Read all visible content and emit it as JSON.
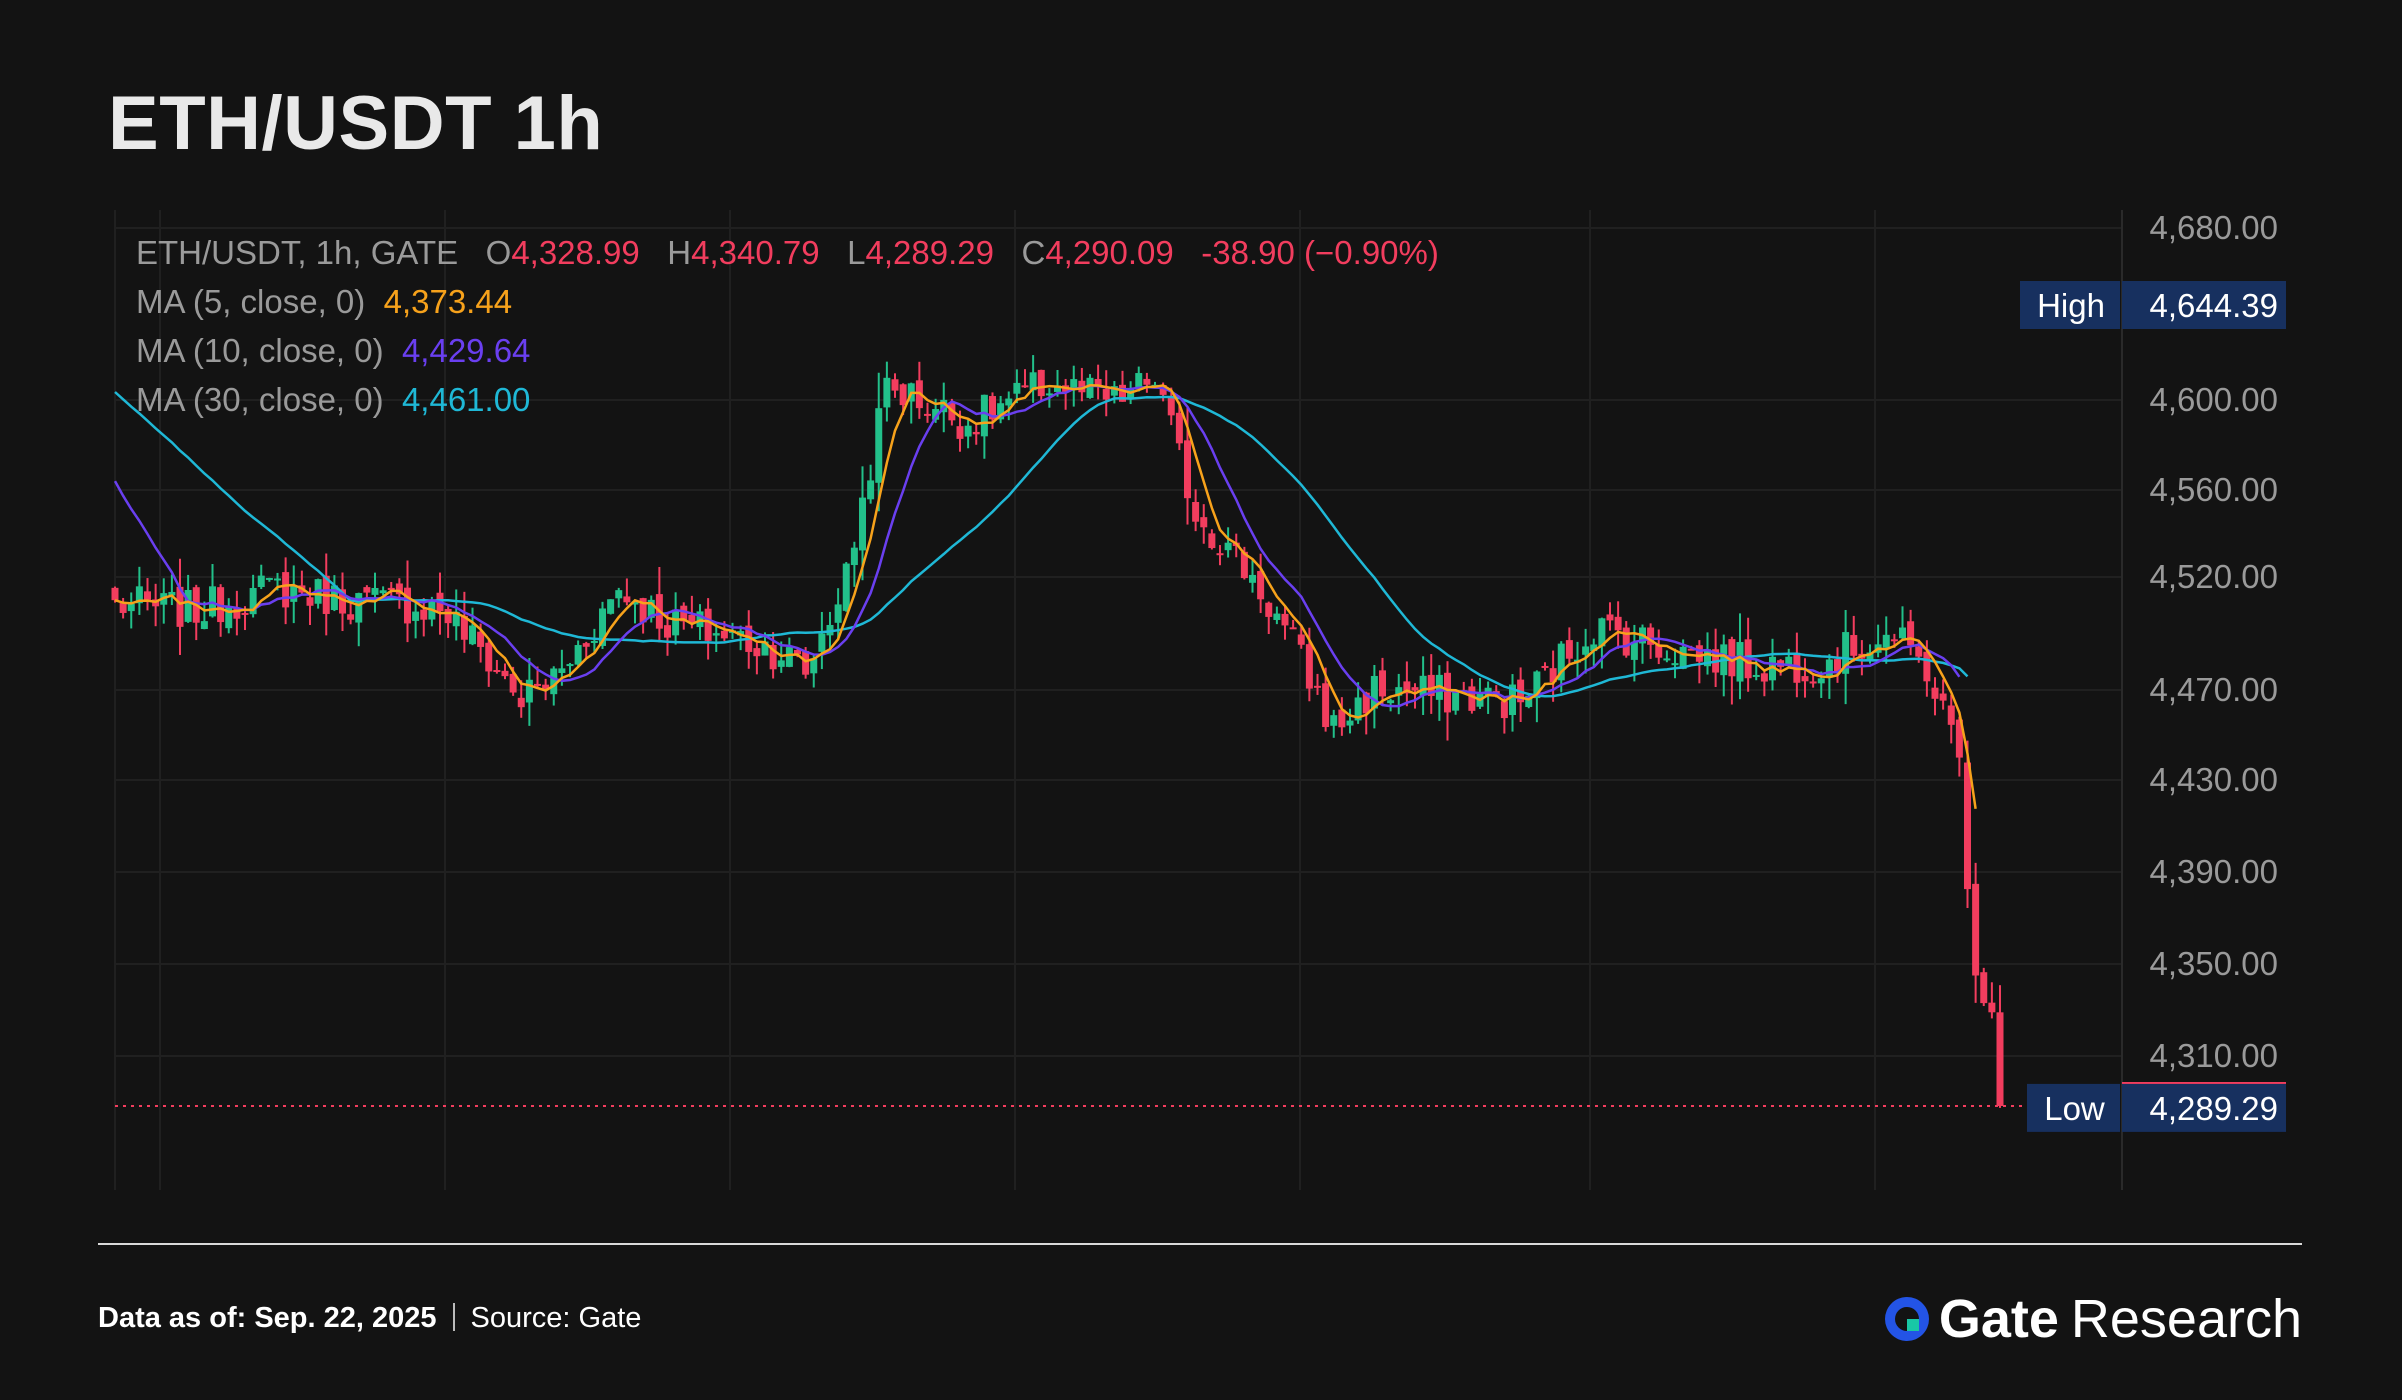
{
  "title": "ETH/USDT 1h",
  "legend": {
    "pair": "ETH/USDT, 1h, GATE",
    "o_label": "O",
    "o": "4,328.99",
    "h_label": "H",
    "h": "4,340.79",
    "l_label": "L",
    "l": "4,289.29",
    "c_label": "C",
    "c": "4,290.09",
    "change": "-38.90 (−0.90%)",
    "ma5_label": "MA (5, close, 0)",
    "ma5": "4,373.44",
    "ma10_label": "MA (10, close, 0)",
    "ma10": "4,429.64",
    "ma30_label": "MA (30, close, 0)",
    "ma30": "4,461.00"
  },
  "footer": {
    "data_as_of_label": "Data as of:",
    "data_as_of": "Sep. 22, 2025",
    "source_label": "Source:",
    "source": "Gate",
    "brand_gate": "Gate",
    "brand_research": "Research"
  },
  "colors": {
    "up": "#22c08a",
    "down": "#f23d5e",
    "ma5": "#f7a21b",
    "ma10": "#6a3ff0",
    "ma30": "#1fb8d6",
    "marker": "#17305f",
    "background": "#131313",
    "grid": "#202020"
  },
  "chart_data": {
    "type": "candlestick",
    "ylim": [
      4280,
      4690
    ],
    "yticks": [
      4680,
      4600,
      4560,
      4520,
      4470,
      4430,
      4390,
      4350,
      4310
    ],
    "ytick_labels": [
      "4,680.00",
      "4,600.00",
      "4,560.00",
      "4,520.00",
      "4,470.00",
      "4,430.00",
      "4,390.00",
      "4,350.00",
      "4,310.00"
    ],
    "markers": [
      {
        "label": "High",
        "value": 4644.39,
        "text": "4,644.39",
        "kind": "high"
      },
      {
        "label": "",
        "value": 4290.09,
        "text": "4,290.09",
        "kind": "last"
      },
      {
        "label": "Low",
        "value": 4289.29,
        "text": "4,289.29",
        "kind": "low"
      }
    ],
    "anchors": [
      [
        0,
        4508
      ],
      [
        10,
        4505
      ],
      [
        20,
        4515
      ],
      [
        30,
        4509
      ],
      [
        40,
        4507
      ],
      [
        45,
        4488
      ],
      [
        50,
        4466
      ],
      [
        55,
        4478
      ],
      [
        62,
        4515
      ],
      [
        68,
        4500
      ],
      [
        76,
        4494
      ],
      [
        82,
        4487
      ],
      [
        85,
        4478
      ],
      [
        90,
        4520
      ],
      [
        95,
        4607
      ],
      [
        105,
        4590
      ],
      [
        115,
        4608
      ],
      [
        123,
        4599
      ],
      [
        128,
        4610
      ],
      [
        133,
        4550
      ],
      [
        140,
        4520
      ],
      [
        145,
        4490
      ],
      [
        150,
        4453
      ],
      [
        155,
        4470
      ],
      [
        163,
        4468
      ],
      [
        173,
        4465
      ],
      [
        182,
        4498
      ],
      [
        192,
        4488
      ],
      [
        202,
        4481
      ],
      [
        210,
        4482
      ],
      [
        218,
        4495
      ],
      [
        223,
        4480
      ],
      [
        227,
        4440
      ],
      [
        229,
        4340
      ],
      [
        232,
        4290.09
      ]
    ],
    "ma30_start": 4607,
    "ma10_start": 4570
  }
}
